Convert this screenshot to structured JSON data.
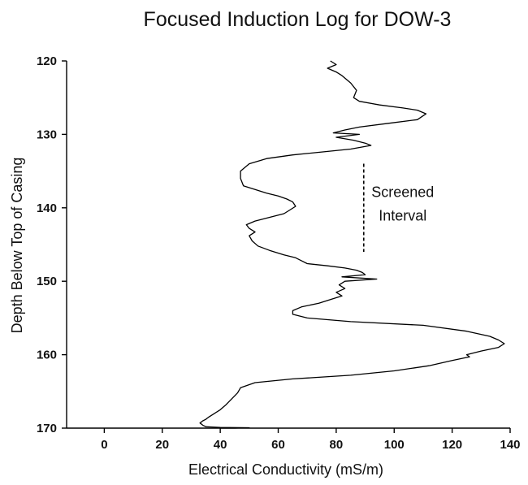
{
  "chart_data": {
    "type": "line",
    "title": "Focused Induction Log for DOW-3",
    "xlabel": "Electrical Conductivity (mS/m)",
    "ylabel": "Depth Below Top of Casing",
    "xlim": [
      -13,
      140
    ],
    "ylim": [
      120,
      170
    ],
    "y_inverted": true,
    "x_ticks": [
      "0",
      "20",
      "40",
      "60",
      "80",
      "100",
      "120",
      "140"
    ],
    "y_ticks": [
      "120",
      "130",
      "140",
      "150",
      "160",
      "170"
    ],
    "grid": false,
    "legend": "none",
    "annotation": {
      "lines": [
        "Screened",
        "Interval"
      ],
      "x": 89.5,
      "y_range": [
        134,
        146
      ]
    },
    "series": [
      {
        "x": [
          78,
          80,
          77,
          80,
          82,
          85,
          87,
          86,
          88,
          95,
          103,
          108,
          111,
          108,
          98,
          88,
          83,
          79,
          88,
          80,
          86,
          90,
          92,
          85,
          75,
          65,
          56,
          50,
          47,
          47,
          48,
          52,
          56,
          60,
          63,
          65,
          66,
          64,
          62,
          58,
          52,
          49,
          50,
          52,
          50,
          51,
          53,
          57,
          62,
          66,
          68,
          70,
          77,
          83,
          87,
          89,
          90,
          82,
          94,
          83,
          81,
          83,
          80,
          82,
          78,
          74,
          68,
          65,
          65,
          70,
          85,
          110,
          125,
          133,
          136,
          138,
          136,
          130,
          125,
          126,
          120,
          112,
          100,
          85,
          65,
          52,
          47,
          46,
          44,
          42,
          40,
          38,
          36,
          35,
          34,
          33,
          34,
          35,
          40,
          50,
          45,
          43,
          40
        ],
        "y": [
          120,
          120.5,
          121,
          121.5,
          122,
          123,
          124,
          125,
          125.5,
          126,
          126.4,
          126.7,
          127.2,
          128,
          128.5,
          129,
          129.4,
          129.8,
          130,
          130.4,
          130.8,
          131.2,
          131.5,
          132,
          132.4,
          132.8,
          133.3,
          134,
          135,
          136,
          137,
          137.5,
          138,
          138.4,
          138.8,
          139.2,
          139.8,
          140.3,
          140.8,
          141.2,
          141.8,
          142.3,
          142.8,
          143.3,
          143.8,
          144.5,
          145.2,
          145.8,
          146.4,
          146.8,
          147.2,
          147.6,
          147.9,
          148.2,
          148.5,
          148.8,
          149.1,
          149.4,
          149.7,
          150,
          150.5,
          151,
          151.5,
          152,
          152.5,
          153,
          153.5,
          154,
          154.5,
          155,
          155.5,
          156,
          156.8,
          157.5,
          158,
          158.5,
          159,
          159.5,
          160,
          160.3,
          160.8,
          161.5,
          162.2,
          162.8,
          163.3,
          163.8,
          164.5,
          165.2,
          166,
          166.8,
          167.5,
          168,
          168.5,
          168.8,
          169,
          169.3,
          169.6,
          169.8,
          169.9,
          169.95,
          170,
          170,
          170
        ]
      }
    ]
  }
}
